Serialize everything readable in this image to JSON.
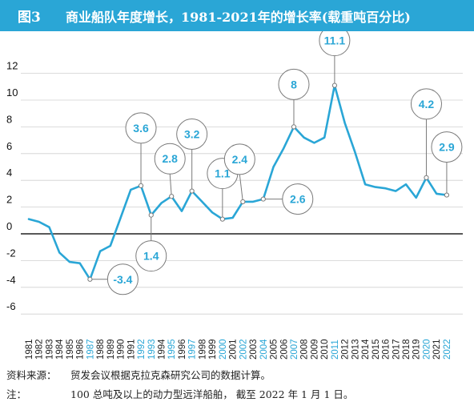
{
  "header": {
    "figure_number": "图3",
    "title": "商业船队年度增长，1981-2021年的增长率(载重吨百分比)"
  },
  "colors": {
    "header_bg": "#2aa6d6",
    "line": "#2aa6d6",
    "label_text": "#2aa6d6",
    "bubble_border": "#7a7a7a",
    "axis": "#222222",
    "grid": "#d0d0d0",
    "year_highlight": "#2aa6d6",
    "year_normal": "#222222"
  },
  "chart_data": {
    "type": "line",
    "title": "商业船队年度增长，1981-2021年的增长率(载重吨百分比)",
    "xlabel": "",
    "ylabel": "",
    "ylim": [
      -6,
      12
    ],
    "yticks": [
      -6,
      -4,
      -2,
      0,
      2,
      4,
      6,
      8,
      10,
      12
    ],
    "grid": "horizontal",
    "x": [
      "1981",
      "1982",
      "1983",
      "1984",
      "1985",
      "1986",
      "1987",
      "1988",
      "1989",
      "1990",
      "1991",
      "1992",
      "1993",
      "1994",
      "1995",
      "1996",
      "1997",
      "1998",
      "1999",
      "2000",
      "2001",
      "2002",
      "2003",
      "2004",
      "2005",
      "2006",
      "2007",
      "2008",
      "2009",
      "2010",
      "2011",
      "2012",
      "2013",
      "2014",
      "2015",
      "2016",
      "2017",
      "2018",
      "2019",
      "2020",
      "2021",
      "2022"
    ],
    "series": [
      {
        "values": [
          1.1,
          0.9,
          0.5,
          -1.4,
          -2.1,
          -2.2,
          -3.4,
          -1.3,
          -0.9,
          1.2,
          3.3,
          3.6,
          1.4,
          2.3,
          2.8,
          1.7,
          3.2,
          2.4,
          1.6,
          1.1,
          1.2,
          2.4,
          2.4,
          2.6,
          5.0,
          6.4,
          8.0,
          7.2,
          6.8,
          7.2,
          11.1,
          8.3,
          6.1,
          3.7,
          3.5,
          3.4,
          3.2,
          3.7,
          2.7,
          4.2,
          3.0,
          2.9
        ]
      }
    ],
    "highlighted_years": [
      "1987",
      "1992",
      "1993",
      "1995",
      "1997",
      "2000",
      "2002",
      "2004",
      "2007",
      "2011",
      "2020",
      "2022"
    ],
    "annotations": [
      {
        "x": "1987",
        "label": "-3.4"
      },
      {
        "x": "1992",
        "label": "3.6"
      },
      {
        "x": "1993",
        "label": "1.4"
      },
      {
        "x": "1995",
        "label": "2.8"
      },
      {
        "x": "1997",
        "label": "3.2"
      },
      {
        "x": "2000",
        "label": "1.1"
      },
      {
        "x": "2002",
        "label": "2.4"
      },
      {
        "x": "2004",
        "label": "2.6"
      },
      {
        "x": "2007",
        "label": "8"
      },
      {
        "x": "2011",
        "label": "11.1"
      },
      {
        "x": "2020",
        "label": "4.2"
      },
      {
        "x": "2022",
        "label": "2.9"
      }
    ]
  },
  "notes": {
    "source_label": "资料来源：",
    "source_text": "贸发会议根据克拉克森研究公司的数据计算。",
    "note_label": "注：",
    "note_text": "100 总吨及以上的动力型远洋船舶， 截至 2022 年 1 月 1 日。"
  }
}
